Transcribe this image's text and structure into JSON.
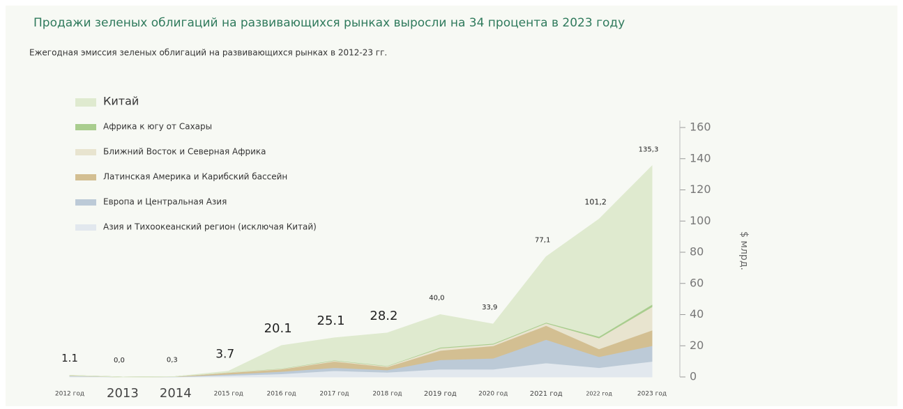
{
  "chart_data": {
    "type": "stacked_area",
    "title": "Продажи зеленых облигаций на развивающихся рынках выросли на 34 процента в 2023 году",
    "subtitle": "Ежегодная эмиссия зеленых облигаций на развивающихся рынках в 2012-23 гг.",
    "y_label": "$ млрд.",
    "categories": [
      "2012 год",
      "2013",
      "2014",
      "2015 год",
      "2016 год",
      "2017 год",
      "2018 год",
      "2019 год",
      "2020 год",
      "2021 год",
      "2022 год",
      "2023 год"
    ],
    "series": [
      {
        "name": "Азия и Тихоокеанский регион (исключая Китай)",
        "color": "#e2e8ee",
        "values": [
          0.5,
          0,
          0.1,
          1.0,
          2.0,
          4,
          3,
          5,
          5,
          9,
          6,
          10
        ]
      },
      {
        "name": "Европа и Центральная Азия",
        "color": "#bccad7",
        "values": [
          0.3,
          0,
          0.1,
          0.8,
          1.5,
          2,
          1.5,
          6,
          7,
          15,
          7,
          10
        ]
      },
      {
        "name": "Латинская Америка и Карибский бассейн",
        "color": "#d3bf92",
        "values": [
          0.2,
          0,
          0.1,
          1.0,
          1.5,
          4,
          2,
          6,
          8,
          9,
          5,
          10
        ]
      },
      {
        "name": "Ближний Восток и Северная Африка",
        "color": "#e8e4cf",
        "values": [
          0,
          0,
          0,
          0.2,
          0.3,
          0.5,
          0.5,
          1.5,
          1,
          1.5,
          7,
          15
        ]
      },
      {
        "name": "Африка к югу от Сахары",
        "color": "#a9cd8e",
        "values": [
          0,
          0,
          0,
          0.1,
          0.2,
          0.3,
          0.2,
          0.5,
          0.5,
          0.5,
          1,
          1.5
        ]
      },
      {
        "name": "Китай",
        "color": "#dfeacf",
        "values": [
          0.1,
          0,
          0,
          0.6,
          14.6,
          14.3,
          21.0,
          21.0,
          12.4,
          42.1,
          75.2,
          88.8
        ]
      }
    ],
    "totals": [
      1.1,
      0.0,
      0.3,
      3.7,
      20.1,
      25.1,
      28.2,
      40.0,
      33.9,
      77.1,
      101.2,
      135.3
    ],
    "value_labels": [
      "1.1",
      "0,0",
      "0,3",
      "3.7",
      "20.1",
      "25.1",
      "28.2",
      "40,0",
      "33,9",
      "77,1",
      "101,2",
      "135,3"
    ],
    "ylim": [
      0,
      160
    ],
    "yticks": [
      0,
      20,
      40,
      60,
      80,
      100,
      120,
      140,
      160
    ],
    "y_axis_side": "right"
  }
}
